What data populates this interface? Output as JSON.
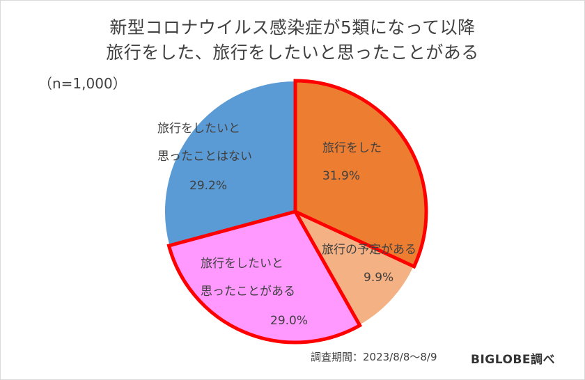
{
  "chart_data": {
    "type": "pie",
    "title_lines": [
      "新型コロナウイルス感染症が5類になって以降",
      "旅行をした、旅行をしたいと思ったことがある"
    ],
    "sample_note": "（n=1,000）",
    "slices": [
      {
        "label_lines": [
          "旅行をした"
        ],
        "value": 31.9,
        "value_text": "31.9%",
        "color": "#ED7D31",
        "highlighted": true
      },
      {
        "label_lines": [
          "旅行の予定がある"
        ],
        "value": 9.9,
        "value_text": "9.9%",
        "color": "#F4B183",
        "highlighted": false
      },
      {
        "label_lines": [
          "旅行をしたいと",
          "思ったことがある"
        ],
        "value": 29.0,
        "value_text": "29.0%",
        "color": "#FF99FF",
        "highlighted": true
      },
      {
        "label_lines": [
          "旅行をしたいと",
          "思ったことはない"
        ],
        "value": 29.2,
        "value_text": "29.2%",
        "color": "#5B9BD5",
        "highlighted": false
      }
    ],
    "highlight_color": "#FF0000"
  },
  "footer": {
    "period": "調査期間：2023/8/8～8/9",
    "source": "BIGLOBE調べ"
  }
}
